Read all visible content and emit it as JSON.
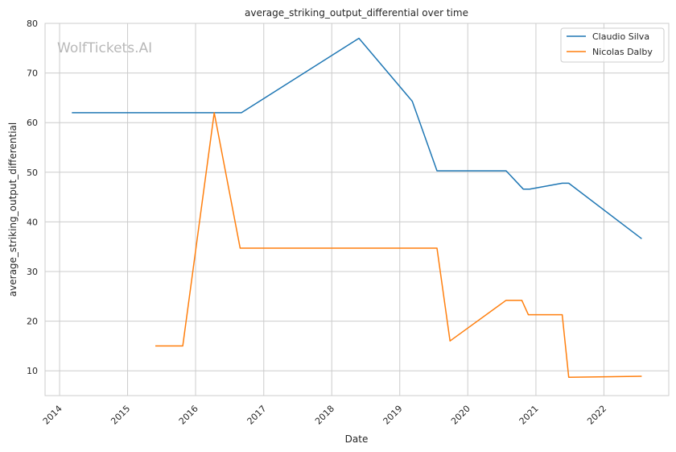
{
  "watermark": "WolfTickets.AI",
  "chart_data": {
    "type": "line",
    "title": "average_striking_output_differential over time",
    "xlabel": "Date",
    "ylabel": "average_striking_output_differential",
    "x_axis_type": "date",
    "xlim": [
      "2013-10-15",
      "2022-12-15"
    ],
    "ylim": [
      5,
      80
    ],
    "x_ticks": [
      "2014",
      "2015",
      "2016",
      "2017",
      "2018",
      "2019",
      "2020",
      "2021",
      "2022"
    ],
    "y_ticks": [
      10,
      20,
      30,
      40,
      50,
      60,
      70,
      80
    ],
    "grid": true,
    "legend_position": "top-right",
    "series": [
      {
        "name": "Claudio Silva",
        "color": "#1f77b4",
        "points": [
          [
            "2014-03-08",
            62.0
          ],
          [
            "2016-09-03",
            62.0
          ],
          [
            "2018-05-27",
            77.0
          ],
          [
            "2019-03-09",
            64.3
          ],
          [
            "2019-07-20",
            50.3
          ],
          [
            "2020-07-25",
            50.3
          ],
          [
            "2020-10-25",
            46.6
          ],
          [
            "2020-11-28",
            46.6
          ],
          [
            "2021-05-22",
            47.8
          ],
          [
            "2021-06-26",
            47.8
          ],
          [
            "2022-07-23",
            36.6
          ]
        ]
      },
      {
        "name": "Nicolas Dalby",
        "color": "#ff7f0e",
        "points": [
          [
            "2015-05-30",
            15.0
          ],
          [
            "2015-10-24",
            15.0
          ],
          [
            "2016-04-10",
            62.0
          ],
          [
            "2016-08-27",
            34.7
          ],
          [
            "2019-07-20",
            34.7
          ],
          [
            "2019-09-28",
            16.0
          ],
          [
            "2020-07-25",
            24.2
          ],
          [
            "2020-10-17",
            24.2
          ],
          [
            "2020-11-21",
            21.3
          ],
          [
            "2021-05-22",
            21.3
          ],
          [
            "2021-06-26",
            8.7
          ],
          [
            "2022-07-23",
            8.9
          ]
        ]
      }
    ]
  }
}
